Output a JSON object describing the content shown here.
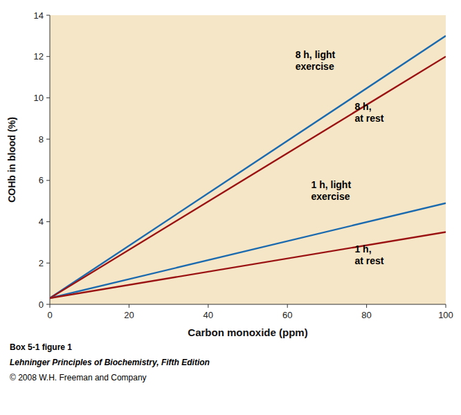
{
  "chart_data": {
    "type": "line",
    "xlabel": "Carbon monoxide (ppm)",
    "ylabel": "COHb in blood (%)",
    "xlim": [
      0,
      100
    ],
    "ylim": [
      0,
      14
    ],
    "xticks": [
      0,
      20,
      40,
      60,
      80,
      100
    ],
    "yticks": [
      0,
      2,
      4,
      6,
      8,
      10,
      12,
      14
    ],
    "grid": false,
    "series": [
      {
        "name": "8 h, light\nexercise",
        "color": "#1a6aaf",
        "x": [
          0,
          100
        ],
        "values": [
          0.3,
          13.0
        ],
        "label_x": 62,
        "label_y": 11.8
      },
      {
        "name": "8 h,\nat rest",
        "color": "#9b1212",
        "x": [
          0,
          100
        ],
        "values": [
          0.3,
          12.0
        ],
        "label_x": 77,
        "label_y": 9.3
      },
      {
        "name": "1 h, light\nexercise",
        "color": "#1a6aaf",
        "x": [
          0,
          100
        ],
        "values": [
          0.3,
          4.9
        ],
        "label_x": 66,
        "label_y": 5.5
      },
      {
        "name": "1 h,\nat rest",
        "color": "#9b1212",
        "x": [
          0,
          100
        ],
        "values": [
          0.3,
          3.5
        ],
        "label_x": 77,
        "label_y": 2.4
      }
    ],
    "caption": [
      "Box 5-1 figure 1",
      "Lehninger Principles of Biochemistry, Fifth Edition",
      "© 2008 W.H. Freeman and Company"
    ]
  }
}
